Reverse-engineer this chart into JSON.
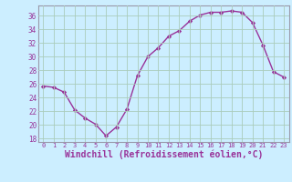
{
  "x": [
    0,
    1,
    2,
    3,
    4,
    5,
    6,
    7,
    8,
    9,
    10,
    11,
    12,
    13,
    14,
    15,
    16,
    17,
    18,
    19,
    20,
    21,
    22,
    23
  ],
  "y": [
    25.7,
    25.5,
    24.8,
    22.2,
    21.0,
    20.1,
    18.4,
    19.7,
    22.3,
    27.2,
    30.0,
    31.3,
    33.0,
    33.8,
    35.2,
    36.1,
    36.5,
    36.5,
    36.7,
    36.5,
    35.0,
    31.7,
    27.8,
    27.0
  ],
  "line_color": "#993399",
  "marker": "D",
  "marker_size": 2.2,
  "linewidth": 1.0,
  "xlabel": "Windchill (Refroidissement éolien,°C)",
  "xlabel_fontsize": 7,
  "ylabel_ticks": [
    18,
    20,
    22,
    24,
    26,
    28,
    30,
    32,
    34,
    36
  ],
  "ylim": [
    17.5,
    37.5
  ],
  "xlim": [
    -0.5,
    23.5
  ],
  "background_color": "#cceeff",
  "grid_color": "#aaccbb",
  "spine_color": "#9999aa"
}
